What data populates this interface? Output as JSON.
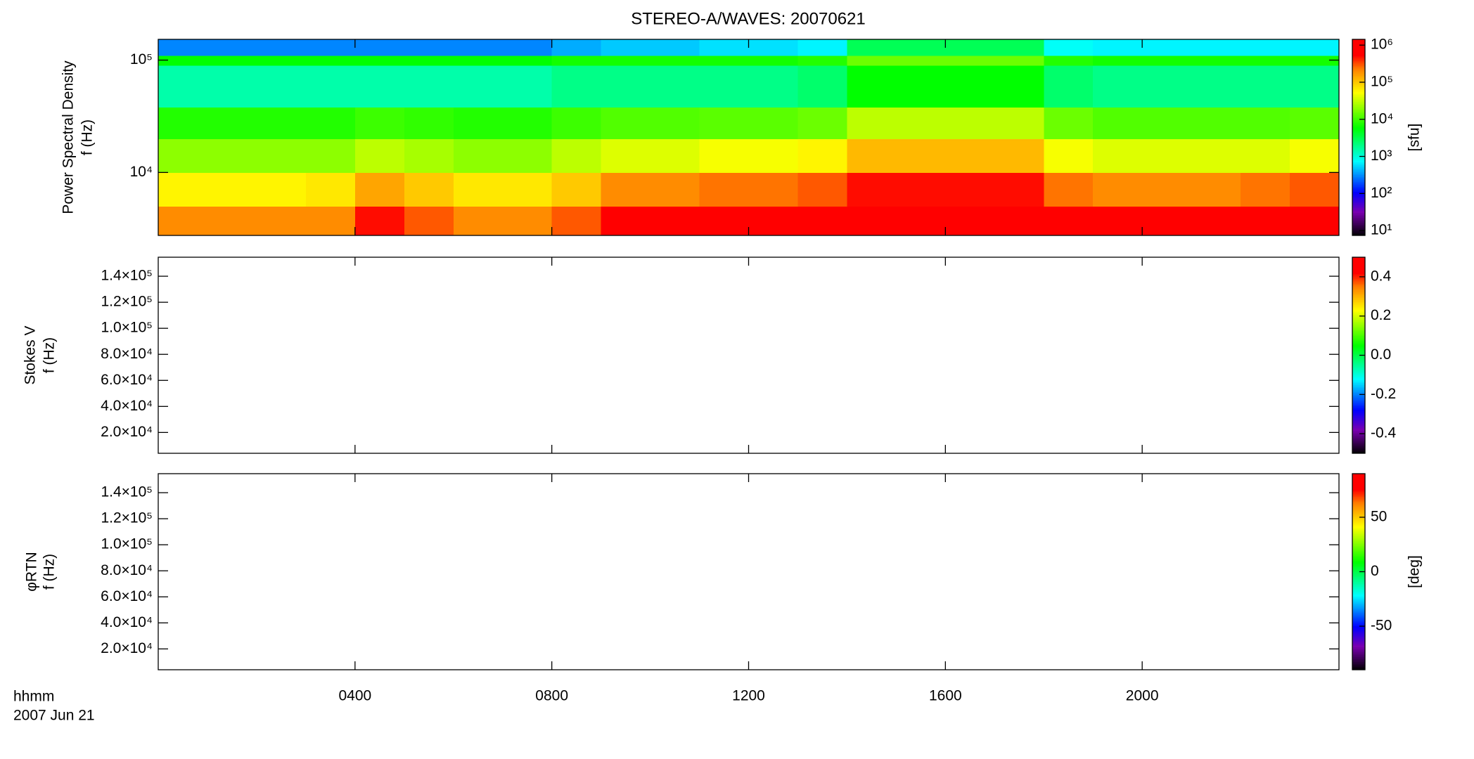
{
  "chart_data": [
    {
      "type": "heatmap",
      "title": "STEREO-A/WAVES: 20070621",
      "ylabel": [
        "Power Spectral Density",
        "f (Hz)"
      ],
      "xlim": [
        0,
        24
      ],
      "xticks": [
        {
          "value": 4,
          "label": "0400"
        },
        {
          "value": 8,
          "label": "0800"
        },
        {
          "value": 12,
          "label": "1200"
        },
        {
          "value": 16,
          "label": "1600"
        },
        {
          "value": 20,
          "label": "2000"
        }
      ],
      "ylim": [
        2750,
        153000
      ],
      "yscale": "log",
      "yticks": [
        {
          "value": 10000,
          "label": "10⁴"
        },
        {
          "value": 100000,
          "label": "10⁵"
        }
      ],
      "colormap": "rainbow",
      "clim": [
        7.4,
        1430000
      ],
      "cscale": "log",
      "clabel": "[sfu]",
      "cticks": [
        {
          "value": 10,
          "label": "10¹"
        },
        {
          "value": 100,
          "label": "10²"
        },
        {
          "value": 1000,
          "label": "10³"
        },
        {
          "value": 10000,
          "label": "10⁴"
        },
        {
          "value": 100000,
          "label": "10⁵"
        },
        {
          "value": 1000000,
          "label": "10⁶"
        }
      ],
      "x_bins": [
        0,
        1,
        2,
        3,
        4,
        5,
        6,
        7,
        8,
        9,
        10,
        11,
        12,
        13,
        14,
        15,
        16,
        17,
        18,
        19,
        20,
        21,
        22,
        23,
        24
      ],
      "y_bins": [
        2750,
        5000,
        10000,
        20000,
        38000,
        90000,
        110000,
        153000
      ],
      "z": [
        [
          200000,
          200000,
          200000,
          200000,
          500000,
          300000,
          200000,
          200000,
          300000,
          600000,
          600000,
          700000,
          700000,
          800000,
          1000000,
          1000000,
          1000000,
          1000000,
          800000,
          600000,
          600000,
          600000,
          700000,
          800000
        ],
        [
          60000,
          60000,
          60000,
          70000,
          150000,
          100000,
          70000,
          70000,
          100000,
          200000,
          200000,
          250000,
          250000,
          300000,
          500000,
          500000,
          500000,
          500000,
          250000,
          200000,
          200000,
          200000,
          250000,
          300000
        ],
        [
          20000,
          20000,
          20000,
          20000,
          30000,
          25000,
          20000,
          20000,
          30000,
          40000,
          40000,
          50000,
          50000,
          60000,
          120000,
          120000,
          120000,
          120000,
          50000,
          40000,
          40000,
          40000,
          40000,
          50000
        ],
        [
          8000,
          8000,
          8000,
          8000,
          10000,
          9000,
          8000,
          8000,
          10000,
          12000,
          12000,
          13000,
          13000,
          15000,
          30000,
          30000,
          30000,
          30000,
          15000,
          12000,
          12000,
          12000,
          12000,
          13000
        ],
        [
          1500,
          1500,
          1500,
          1500,
          1500,
          1500,
          1500,
          1500,
          2000,
          2000,
          2000,
          2000,
          2000,
          2500,
          6000,
          6000,
          6000,
          6000,
          2500,
          2000,
          2000,
          2000,
          2000,
          2000
        ],
        [
          6000,
          6000,
          6000,
          6000,
          6000,
          6000,
          6000,
          6000,
          7000,
          7000,
          7000,
          7000,
          7000,
          8000,
          15000,
          15000,
          15000,
          15000,
          8000,
          7000,
          7000,
          7000,
          7000,
          7000
        ],
        [
          300,
          300,
          300,
          300,
          300,
          300,
          300,
          300,
          400,
          500,
          500,
          600,
          600,
          700,
          3000,
          3000,
          3000,
          3000,
          800,
          700,
          700,
          700,
          700,
          700
        ]
      ]
    },
    {
      "type": "heatmap",
      "ylabel": [
        "Stokes V",
        "f (Hz)"
      ],
      "xlim": [
        0,
        24
      ],
      "xticks": [
        {
          "value": 4,
          "label": "0400"
        },
        {
          "value": 8,
          "label": "0800"
        },
        {
          "value": 12,
          "label": "1200"
        },
        {
          "value": 16,
          "label": "1600"
        },
        {
          "value": 20,
          "label": "2000"
        }
      ],
      "ylim": [
        4000,
        154600
      ],
      "yscale": "linear",
      "yticks": [
        {
          "value": 20000,
          "label": "2.0×10⁴"
        },
        {
          "value": 40000,
          "label": "4.0×10⁴"
        },
        {
          "value": 60000,
          "label": "6.0×10⁴"
        },
        {
          "value": 80000,
          "label": "8.0×10⁴"
        },
        {
          "value": 100000,
          "label": "1.0×10⁵"
        },
        {
          "value": 120000,
          "label": "1.2×10⁵"
        },
        {
          "value": 140000,
          "label": "1.4×10⁵"
        }
      ],
      "colormap": "rainbow",
      "clim": [
        -0.5,
        0.5
      ],
      "cscale": "linear",
      "cticks": [
        -0.4,
        -0.2,
        {
          "value": 0,
          "label": "0.0"
        },
        0.2,
        0.4
      ]
    },
    {
      "type": "heatmap",
      "ylabel": [
        "φRTN",
        "f (Hz)"
      ],
      "xlim": [
        0,
        24
      ],
      "xticks": [
        {
          "value": 4,
          "label": "0400"
        },
        {
          "value": 8,
          "label": "0800"
        },
        {
          "value": 12,
          "label": "1200"
        },
        {
          "value": 16,
          "label": "1600"
        },
        {
          "value": 20,
          "label": "2000"
        }
      ],
      "xlabel": [
        "hhmm",
        "2007 Jun 21"
      ],
      "ylim": [
        4000,
        154600
      ],
      "yscale": "linear",
      "yticks": [
        {
          "value": 20000,
          "label": "2.0×10⁴"
        },
        {
          "value": 40000,
          "label": "4.0×10⁴"
        },
        {
          "value": 60000,
          "label": "6.0×10⁴"
        },
        {
          "value": 80000,
          "label": "8.0×10⁴"
        },
        {
          "value": 100000,
          "label": "1.0×10⁵"
        },
        {
          "value": 120000,
          "label": "1.2×10⁵"
        },
        {
          "value": 140000,
          "label": "1.4×10⁵"
        }
      ],
      "colormap": "rainbow",
      "clim": [
        -90,
        90
      ],
      "cscale": "linear",
      "clabel": "[deg]",
      "cticks": [
        -50,
        0,
        50
      ]
    }
  ]
}
